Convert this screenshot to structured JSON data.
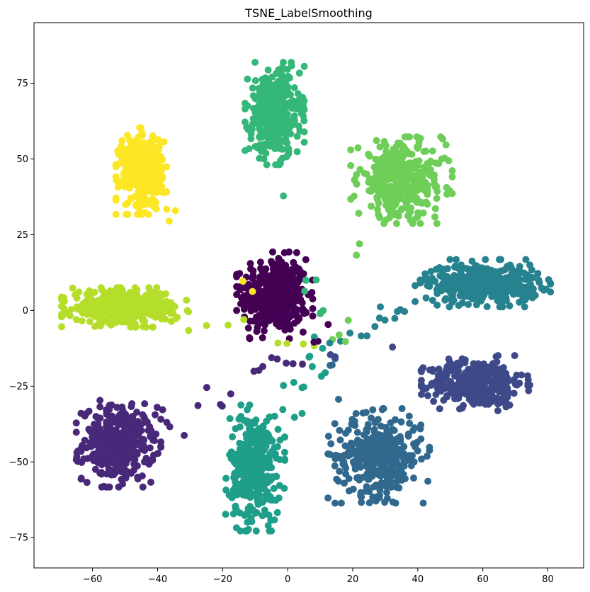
{
  "chart_data": {
    "type": "scatter",
    "title": "TSNE_LabelSmoothing",
    "xlabel": "",
    "ylabel": "",
    "xlim": [
      -78,
      91
    ],
    "ylim": [
      -85,
      95
    ],
    "xticks": [
      -60,
      -40,
      -20,
      0,
      20,
      40,
      60,
      80
    ],
    "yticks": [
      -75,
      -50,
      -25,
      0,
      25,
      50,
      75
    ],
    "grid": false,
    "legend": "none",
    "colormap": "viridis",
    "clusters": [
      {
        "label": 0,
        "color": "#440154",
        "center": [
          -4,
          5
        ],
        "spread": [
          9,
          11
        ],
        "n": 420
      },
      {
        "label": 1,
        "color": "#482878",
        "center": [
          -52,
          -44
        ],
        "spread": [
          10,
          11
        ],
        "n": 360
      },
      {
        "label": 2,
        "color": "#3e4989",
        "center": [
          58,
          -24
        ],
        "spread": [
          13,
          7
        ],
        "n": 360
      },
      {
        "label": 3,
        "color": "#31688e",
        "center": [
          28,
          -48
        ],
        "spread": [
          12,
          12
        ],
        "n": 340
      },
      {
        "label": 4,
        "color": "#26828e",
        "center": [
          60,
          9
        ],
        "spread": [
          16,
          6
        ],
        "n": 380
      },
      {
        "label": 5,
        "color": "#1f9e89",
        "center": [
          -10,
          -52
        ],
        "spread": [
          7,
          16
        ],
        "n": 340
      },
      {
        "label": 6,
        "color": "#35b779",
        "center": [
          -4,
          65
        ],
        "spread": [
          7,
          13
        ],
        "n": 380
      },
      {
        "label": 7,
        "color": "#6ece58",
        "center": [
          35,
          43
        ],
        "spread": [
          12,
          11
        ],
        "n": 360
      },
      {
        "label": 8,
        "color": "#b5de2b",
        "center": [
          -50,
          1
        ],
        "spread": [
          15,
          5
        ],
        "n": 380
      },
      {
        "label": 9,
        "color": "#fde725",
        "center": [
          -45,
          46
        ],
        "spread": [
          6,
          11
        ],
        "n": 360
      }
    ]
  }
}
